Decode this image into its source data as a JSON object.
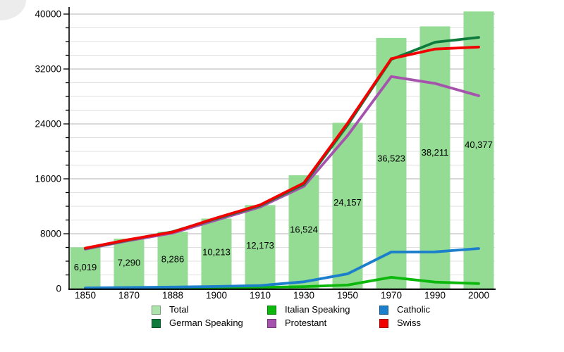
{
  "chart_data": {
    "type": "bar",
    "title": "",
    "xlabel": "",
    "ylabel": "",
    "categories": [
      "1850",
      "1870",
      "1888",
      "1900",
      "1910",
      "1930",
      "1950",
      "1970",
      "1990",
      "2000"
    ],
    "bars": {
      "name": "Total",
      "values": [
        6019,
        7290,
        8286,
        10213,
        12173,
        16524,
        24157,
        36523,
        38211,
        40377
      ],
      "value_labels": [
        "6,019",
        "7,290",
        "8,286",
        "10,213",
        "12,173",
        "16,524",
        "24,157",
        "36,523",
        "38,211",
        "40,377"
      ],
      "color": "#94DC94"
    },
    "series": [
      {
        "name": "Protestant",
        "color": "#A653AE",
        "values": [
          5750,
          7000,
          8100,
          10000,
          11900,
          14900,
          22300,
          30900,
          29900,
          28100
        ]
      },
      {
        "name": "German Speaking",
        "color": "#0E7A3C",
        "values": [
          5850,
          7100,
          8300,
          10200,
          12100,
          15200,
          23800,
          33400,
          35900,
          36600
        ]
      },
      {
        "name": "Italian Speaking",
        "color": "#0DB80D",
        "values": [
          30,
          60,
          90,
          120,
          180,
          300,
          520,
          1650,
          950,
          740
        ]
      },
      {
        "name": "Catholic",
        "color": "#1B7FCC",
        "values": [
          100,
          160,
          230,
          320,
          450,
          1000,
          2150,
          5330,
          5350,
          5850
        ]
      },
      {
        "name": "Swiss",
        "color": "#F20000",
        "values": [
          5900,
          7150,
          8250,
          10300,
          12200,
          15400,
          24100,
          33500,
          34900,
          35200
        ]
      }
    ],
    "yaxis": {
      "min": 0,
      "max": 40000,
      "major_step": 8000,
      "minor_step": 2000,
      "tick_labels": [
        "0",
        "8000",
        "16000",
        "24000",
        "32000",
        "40000"
      ]
    },
    "grid": true,
    "legend_position": "bottom"
  },
  "legend": {
    "items": [
      {
        "label": "Total",
        "color": "#ABE3AB"
      },
      {
        "label": "German Speaking",
        "color": "#0E7A3C"
      },
      {
        "label": "Italian Speaking",
        "color": "#0DB80D"
      },
      {
        "label": "Protestant",
        "color": "#A653AE"
      },
      {
        "label": "Catholic",
        "color": "#1B7FCC"
      },
      {
        "label": "Swiss",
        "color": "#F20000"
      }
    ]
  }
}
